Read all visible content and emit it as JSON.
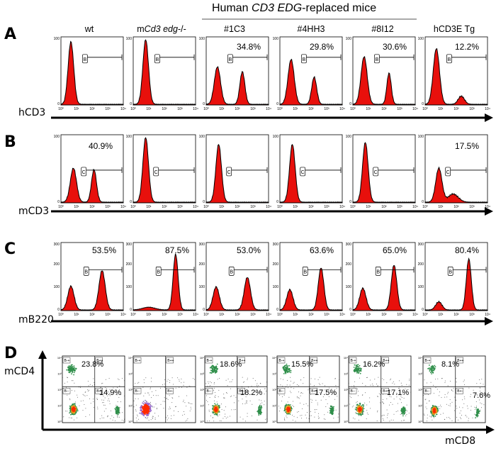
{
  "header": {
    "group_title_prefix": "Human ",
    "group_title_italic": "CD3 EDG",
    "group_title_suffix": "-replaced mice"
  },
  "columns": [
    {
      "label": "wt"
    },
    {
      "label_prefix": "m",
      "label_italic": "Cd3 edg",
      "label_suffix": "-/-"
    },
    {
      "label": "#1C3"
    },
    {
      "label": "#4HH3"
    },
    {
      "label": "#8I12"
    },
    {
      "label": "hCD3E Tg"
    }
  ],
  "panels": {
    "A": {
      "letter": "A",
      "axis_label": "hCD3",
      "gate_label": "B",
      "values": [
        "",
        "",
        "34.8%",
        "29.8%",
        "30.6%",
        "12.2%"
      ]
    },
    "B": {
      "letter": "B",
      "axis_label": "mCD3",
      "gate_label": "C",
      "values": [
        "40.9%",
        "",
        "",
        "",
        "",
        "17.5%"
      ]
    },
    "C": {
      "letter": "C",
      "axis_label": "mB220",
      "gate_label": "B",
      "values": [
        "53.5%",
        "87.5%",
        "53.0%",
        "63.6%",
        "65.0%",
        "80.4%"
      ]
    },
    "D": {
      "letter": "D",
      "y_label": "mCD4",
      "x_label": "mCD8",
      "quad_labels": [
        "B-+",
        "B++",
        "B--",
        "B+-"
      ],
      "cd4": [
        "23.8%",
        "",
        "18.6%",
        "15.5%",
        "16.2%",
        "8.1%"
      ],
      "cd8": [
        "14.9%",
        "",
        "18.2%",
        "17.5%",
        "17.1%",
        "7.6%"
      ]
    }
  },
  "hist_axis": {
    "y_ticks_ab": [
      "100",
      "0"
    ],
    "y_ticks_c": [
      "300",
      "200",
      "100",
      "0"
    ],
    "x_ticks": [
      "10⁰",
      "10¹",
      "10²",
      "10³",
      "10⁴"
    ]
  },
  "colors": {
    "fill": "#e8100c",
    "line": "#000000",
    "dot_green": "#2f8f4a",
    "dot_red": "#ff2a00",
    "dot_purple": "#9966cc"
  }
}
